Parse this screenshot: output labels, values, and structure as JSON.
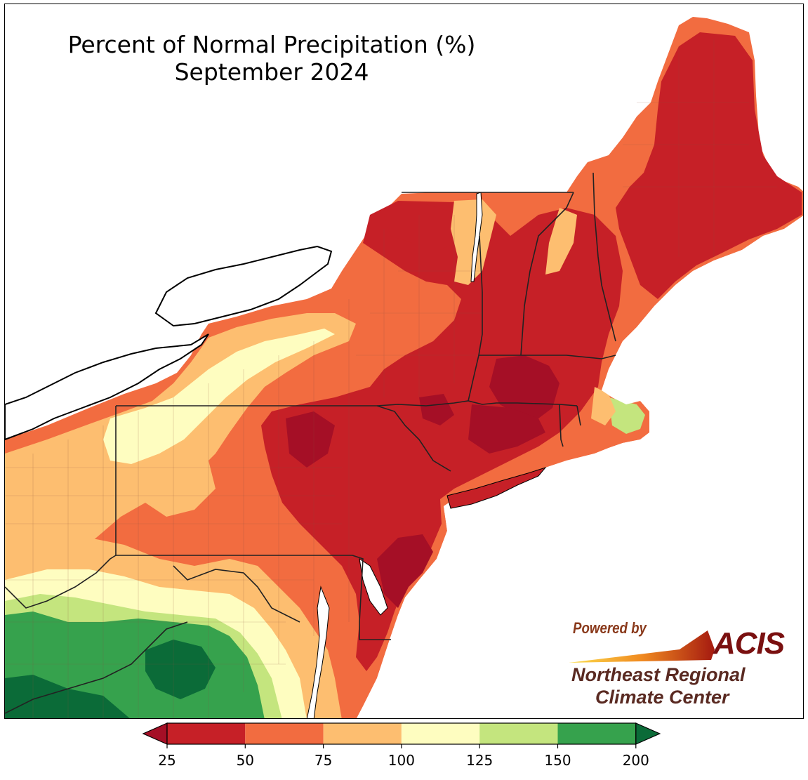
{
  "map": {
    "title_line1": "Percent of Normal Precipitation (%)",
    "title_line2": "September 2024",
    "region": "Northeast United States",
    "layers": [
      "state-borders",
      "county-borders",
      "coastline",
      "great-lakes"
    ]
  },
  "legend": {
    "colors": [
      "#c62027",
      "#f26c40",
      "#fdbe70",
      "#fefdc0",
      "#c4e57e",
      "#36a24d"
    ],
    "under_color": "#a50f26",
    "over_color": "#0b6b38",
    "ticks": [
      "25",
      "50",
      "75",
      "100",
      "125",
      "150",
      "200"
    ],
    "extend": "both"
  },
  "logo": {
    "powered_by": "Powered by",
    "acis": "ACIS",
    "org_line1": "Northeast Regional",
    "org_line2": "Climate Center"
  }
}
